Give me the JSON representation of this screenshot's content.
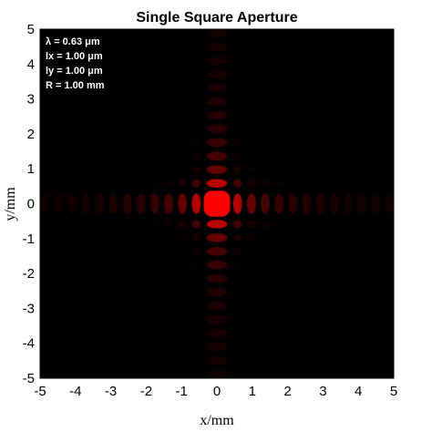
{
  "chart_data": {
    "type": "heatmap",
    "title": "Single Square Aperture",
    "xlabel": "x/mm",
    "ylabel": "y/mm",
    "xlim": [
      -5,
      5
    ],
    "ylim": [
      -5,
      5
    ],
    "xticks": [
      "-5",
      "-4",
      "-3",
      "-2",
      "-1",
      "0",
      "1",
      "2",
      "3",
      "4",
      "5"
    ],
    "yticks": [
      "5",
      "4",
      "3",
      "2",
      "1",
      "0",
      "-1",
      "-2",
      "-3",
      "-4",
      "-5"
    ],
    "xtick_values": [
      -5,
      -4,
      -3,
      -2,
      -1,
      0,
      1,
      2,
      3,
      4,
      5
    ],
    "ytick_values": [
      5,
      4,
      3,
      2,
      1,
      0,
      -1,
      -2,
      -3,
      -4,
      -5
    ],
    "annotations": [
      "λ = 0.63 μm",
      "lx = 1.00 μm",
      "ly = 1.00 μm",
      "R = 1.00 mm"
    ],
    "colormap": [
      "#000000",
      "#ff0000"
    ],
    "background_color": "#000000",
    "peak_color": "#ff0000",
    "grid": false,
    "legend": "none"
  }
}
